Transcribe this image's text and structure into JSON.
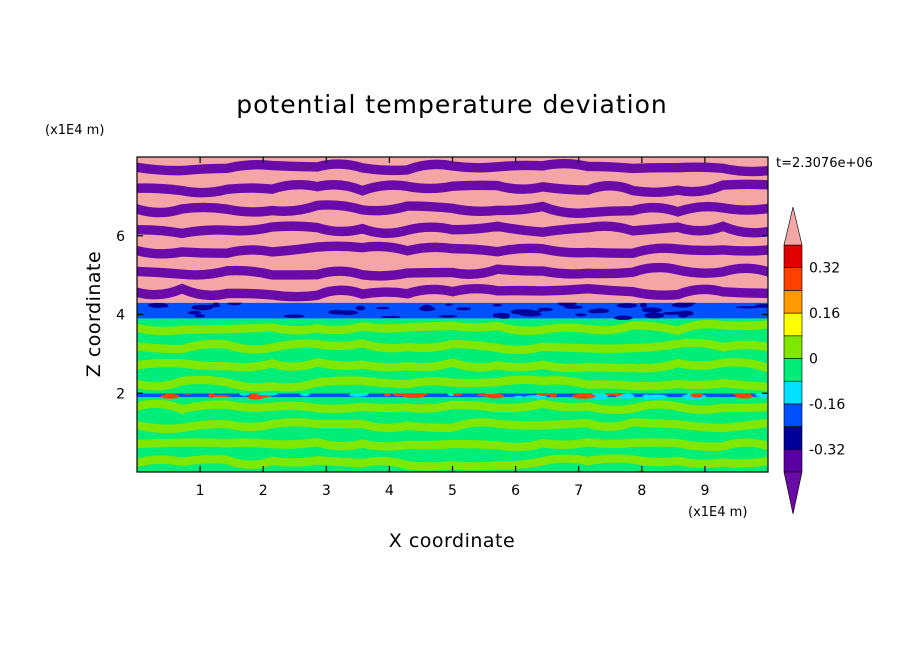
{
  "chart_data": {
    "type": "heatmap",
    "title": "potential temperature deviation",
    "xlabel": "X coordinate",
    "ylabel": "Z coordinate",
    "x_unit": "(x1E4 m)",
    "y_unit": "(x1E4 m)",
    "time_label": "t=2.3076e+06",
    "xlim": [
      0,
      10
    ],
    "ylim": [
      0,
      8
    ],
    "x_ticks": [
      "1",
      "2",
      "3",
      "4",
      "5",
      "6",
      "7",
      "8",
      "9"
    ],
    "y_ticks": [
      "2",
      "4",
      "6"
    ],
    "colorbar": {
      "tick_labels": [
        "0.32",
        "0.16",
        "0",
        "-0.16",
        "-0.32"
      ],
      "tick_values": [
        0.32,
        0.16,
        0,
        -0.16,
        -0.32
      ],
      "levels": [
        -0.4,
        -0.32,
        -0.24,
        -0.16,
        -0.08,
        0,
        0.08,
        0.16,
        0.24,
        0.32,
        0.4
      ],
      "colors": [
        "#5a00a0",
        "#00009a",
        "#0050ff",
        "#00e0ff",
        "#00ee78",
        "#80e800",
        "#ffff00",
        "#ff9a00",
        "#ff4000",
        "#e00000"
      ],
      "over_color": "#f4a6a6",
      "under_color": "#6a0aa8"
    },
    "layers": [
      {
        "z_range": [
          0,
          1.9
        ],
        "dominant": [
          "#00ee78",
          "#80e800"
        ]
      },
      {
        "z_range": [
          1.9,
          2.0
        ],
        "dominant": [
          "#0050ff",
          "#00e0ff",
          "#ff4000"
        ]
      },
      {
        "z_range": [
          2.0,
          3.9
        ],
        "dominant": [
          "#00ee78",
          "#80e800"
        ]
      },
      {
        "z_range": [
          3.9,
          4.3
        ],
        "dominant": [
          "#0050ff",
          "#00009a"
        ]
      },
      {
        "z_range": [
          4.3,
          8.0
        ],
        "dominant": [
          "#f4a6a6",
          "#6a0aa8"
        ]
      }
    ]
  }
}
